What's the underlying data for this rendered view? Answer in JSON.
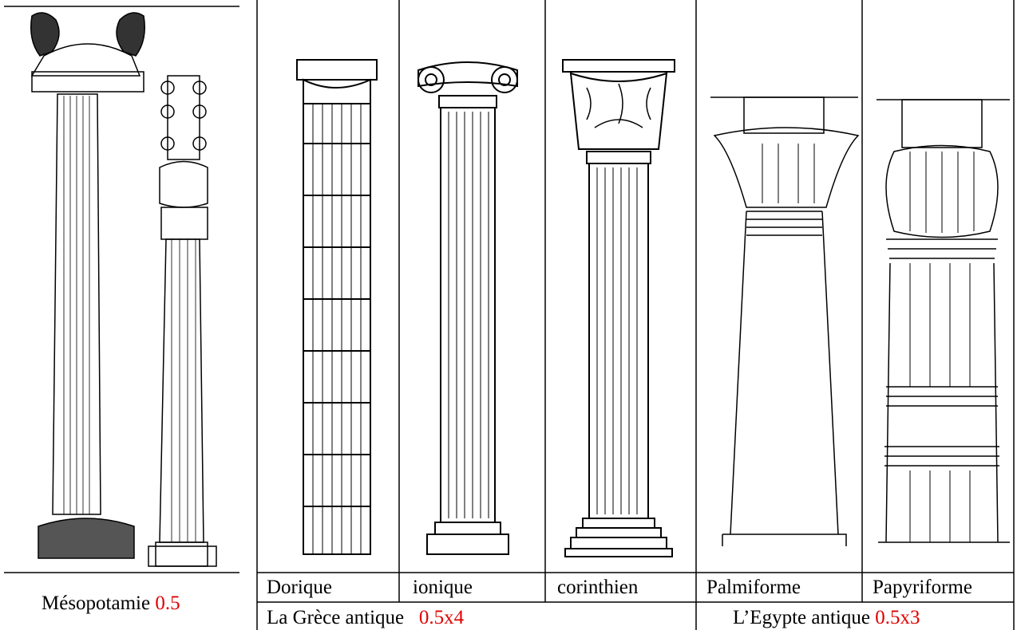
{
  "mesopotamia": {
    "label": "Mésopotamie",
    "score": "0.5"
  },
  "columns": [
    "Dorique",
    "ionique",
    "corinthien",
    "Palmiforme",
    "Papyriforme"
  ],
  "groups": [
    {
      "label": "La Grèce antique",
      "score": "0.5x4"
    },
    {
      "label": "L’Egypte antique",
      "score": "0.5x3"
    }
  ]
}
